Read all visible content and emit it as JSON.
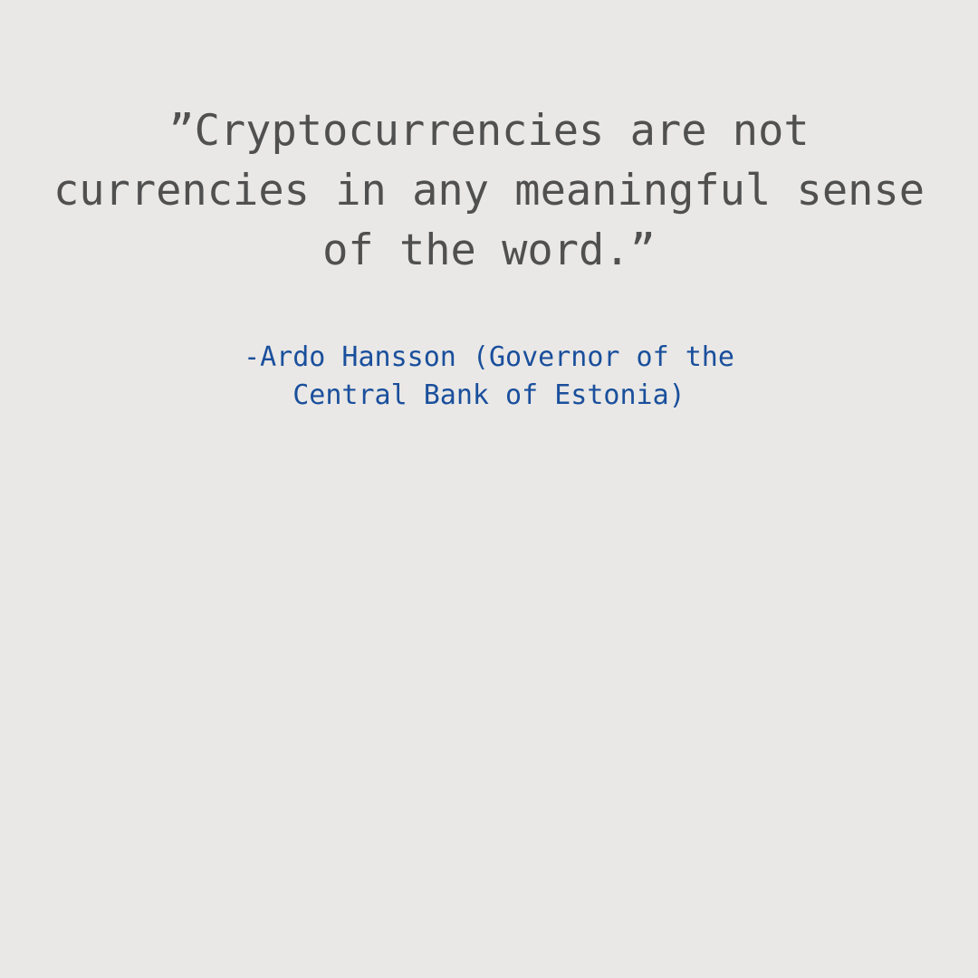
{
  "quote": {
    "lines": [
      "”Cryptocurrencies are not",
      "currencies in any meaningful sense",
      "of the word.”"
    ]
  },
  "attribution": {
    "lines": [
      "-Ardo Hansson (Governor of the",
      "Central Bank of Estonia)"
    ]
  },
  "colors": {
    "background": "#e9e8e6",
    "quote_text": "#505050",
    "attribution_text": "#1a4f9c"
  }
}
